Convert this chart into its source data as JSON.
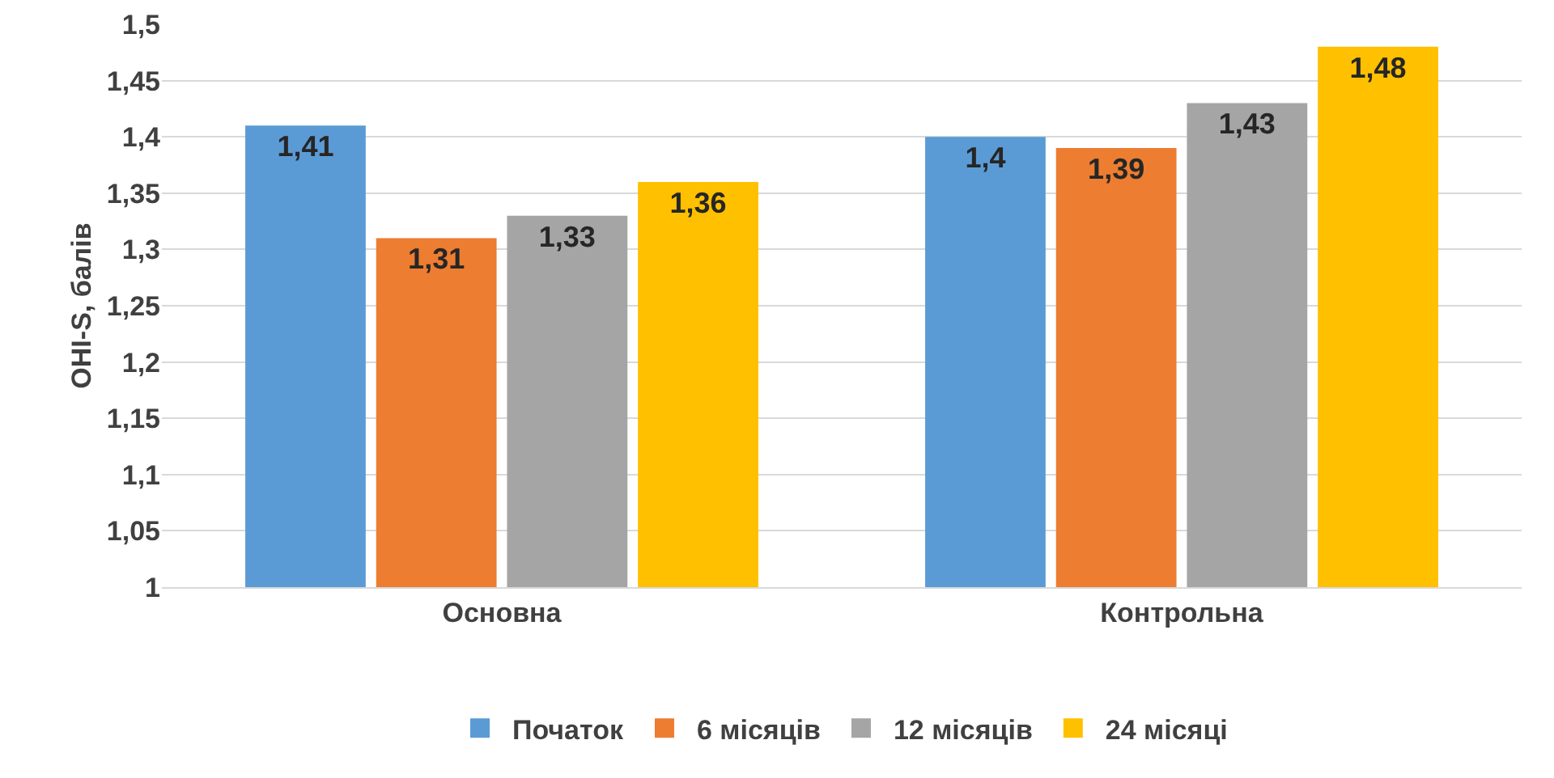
{
  "chart_data": {
    "type": "bar",
    "ylabel": "OHI-S, балів",
    "categories": [
      "Основна",
      "Контрольна"
    ],
    "series": [
      {
        "name": "Початок",
        "color": "#5b9bd5",
        "values": [
          1.41,
          1.4
        ],
        "value_labels": [
          "1,41",
          "1,4"
        ]
      },
      {
        "name": "6 місяців",
        "color": "#ed7d31",
        "values": [
          1.31,
          1.39
        ],
        "value_labels": [
          "1,31",
          "1,39"
        ]
      },
      {
        "name": "12 місяців",
        "color": "#a5a5a5",
        "values": [
          1.33,
          1.43
        ],
        "value_labels": [
          "1,33",
          "1,43"
        ]
      },
      {
        "name": "24 місяці",
        "color": "#ffc000",
        "values": [
          1.36,
          1.48
        ],
        "value_labels": [
          "1,36",
          "1,48"
        ]
      }
    ],
    "ylim": [
      1,
      1.5
    ],
    "yticks": [
      1,
      {
        "value": 1.05,
        "label": "1,05"
      },
      {
        "value": 1.1,
        "label": "1,1"
      },
      {
        "value": 1.15,
        "label": "1,15"
      },
      {
        "value": 1.2,
        "label": "1,2"
      },
      {
        "value": 1.25,
        "label": "1,25"
      },
      {
        "value": 1.3,
        "label": "1,3"
      },
      {
        "value": 1.35,
        "label": "1,35"
      },
      {
        "value": 1.4,
        "label": "1,4"
      },
      {
        "value": 1.45,
        "label": "1,45"
      },
      {
        "value": 1.5,
        "label": "1,5"
      }
    ],
    "grid": "y",
    "legend": "bottom"
  }
}
